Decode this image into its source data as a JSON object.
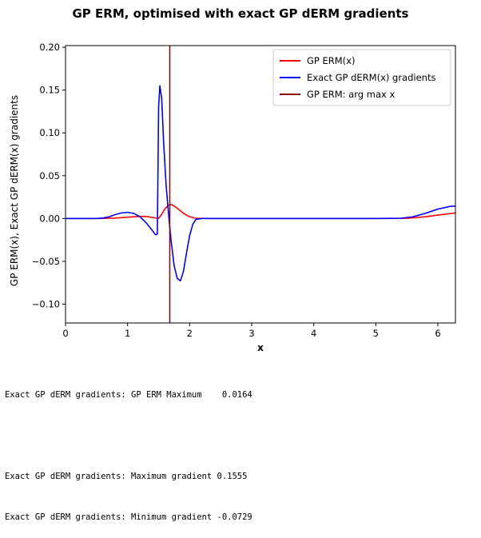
{
  "chart_data": {
    "type": "line",
    "title": "GP ERM, optimised with exact GP dERM gradients",
    "xlabel": "x",
    "ylabel": "GP ERM(x), Exact GP dERM(x) gradients",
    "xlim": [
      0,
      6.283
    ],
    "ylim": [
      -0.122,
      0.202
    ],
    "xticks": [
      "0",
      "1",
      "2",
      "3",
      "4",
      "5",
      "6"
    ],
    "yticks": [
      "−0.10",
      "−0.05",
      "0.00",
      "0.05",
      "0.10",
      "0.15",
      "0.20"
    ],
    "legend_position": "top-right",
    "series": [
      {
        "name": "GP ERM(x)",
        "color": "#ff0000",
        "x": [
          0,
          0.5,
          0.8,
          1.0,
          1.2,
          1.3,
          1.4,
          1.5,
          1.55,
          1.6,
          1.65,
          1.68,
          1.72,
          1.8,
          1.9,
          2.0,
          2.1,
          2.3,
          3.0,
          4.0,
          5.0,
          5.5,
          5.8,
          6.0,
          6.283
        ],
        "y": [
          0,
          0,
          0.0005,
          0.0015,
          0.0025,
          0.0024,
          0.0012,
          0.0002,
          0.005,
          0.011,
          0.015,
          0.0164,
          0.016,
          0.012,
          0.006,
          0.002,
          0.0003,
          0,
          0,
          0,
          0,
          0.0002,
          0.002,
          0.004,
          0.0065
        ]
      },
      {
        "name": "Exact GP dERM(x) gradients",
        "color": "#0000ff",
        "x": [
          0,
          0.5,
          0.6,
          0.7,
          0.8,
          0.9,
          1.0,
          1.1,
          1.2,
          1.3,
          1.4,
          1.45,
          1.48,
          1.5,
          1.52,
          1.55,
          1.58,
          1.62,
          1.66,
          1.7,
          1.75,
          1.8,
          1.85,
          1.9,
          1.95,
          2.0,
          2.05,
          2.1,
          2.2,
          3.0,
          4.0,
          5.0,
          5.4,
          5.6,
          5.8,
          6.0,
          6.2,
          6.283
        ],
        "y": [
          0,
          0,
          0.0005,
          0.002,
          0.0045,
          0.0065,
          0.0072,
          0.006,
          0.002,
          -0.005,
          -0.014,
          -0.019,
          -0.018,
          0.13,
          0.155,
          0.14,
          0.09,
          0.04,
          0.005,
          -0.025,
          -0.055,
          -0.07,
          -0.0729,
          -0.062,
          -0.04,
          -0.02,
          -0.007,
          -0.001,
          0,
          0,
          0,
          0,
          0.0003,
          0.002,
          0.006,
          0.011,
          0.0142,
          0.0145
        ]
      },
      {
        "name": "GP ERM: arg max x",
        "color": "#8b0000",
        "vline_x": 1.68
      }
    ]
  },
  "console": {
    "lines": [
      "Exact GP dERM gradients: GP ERM Maximum    0.0164",
      "",
      "Exact GP dERM gradients: Maximum gradient 0.1555",
      "Exact GP dERM gradients: Minimum gradient -0.0729"
    ]
  }
}
